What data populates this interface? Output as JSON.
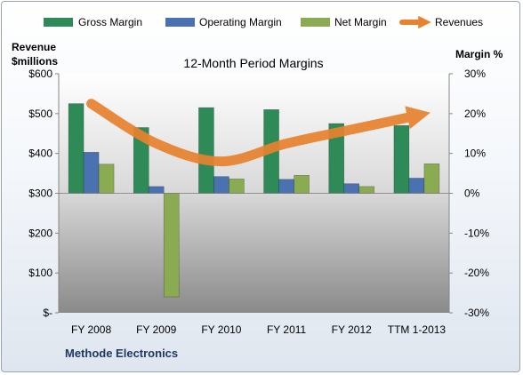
{
  "chart_data": {
    "type": "bar",
    "title": "12-Month Period Margins",
    "company": "Methode Electronics",
    "categories": [
      "FY 2008",
      "FY 2009",
      "FY 2010",
      "FY 2011",
      "FY 2012",
      "TTM 1-2013"
    ],
    "left_axis": {
      "label_line1": "Revenue",
      "label_line2": "$millions",
      "range": [
        0,
        600
      ],
      "ticks": [
        0,
        100,
        200,
        300,
        400,
        500,
        600
      ],
      "tick_labels": [
        "$-",
        "$100",
        "$200",
        "$300",
        "$400",
        "$500",
        "$600"
      ]
    },
    "right_axis": {
      "label": "Margin %",
      "range": [
        -30,
        30
      ],
      "ticks": [
        -30,
        -20,
        -10,
        0,
        10,
        20,
        30
      ],
      "tick_labels": [
        "-30%",
        "-20%",
        "-10%",
        "0%",
        "10%",
        "20%",
        "30%"
      ]
    },
    "series": [
      {
        "name": "Gross Margin",
        "axis": "right",
        "kind": "bar",
        "color": "#2e8b57",
        "values": [
          22.5,
          16.5,
          21.5,
          21,
          17.5,
          17
        ]
      },
      {
        "name": "Operating Margin",
        "axis": "right",
        "kind": "bar",
        "color": "#4a72b0",
        "values": [
          10.3,
          1.7,
          4.2,
          3.5,
          2.4,
          3.8
        ]
      },
      {
        "name": "Net Margin",
        "axis": "right",
        "kind": "bar",
        "color": "#8aab52",
        "values": [
          7.3,
          -26,
          3.6,
          4.5,
          1.7,
          7.4
        ]
      },
      {
        "name": "Revenues",
        "axis": "left",
        "kind": "line",
        "color": "#e8822f",
        "values": [
          525,
          425,
          380,
          425,
          460,
          495
        ]
      }
    ],
    "legend_position": "top",
    "grid": false
  }
}
